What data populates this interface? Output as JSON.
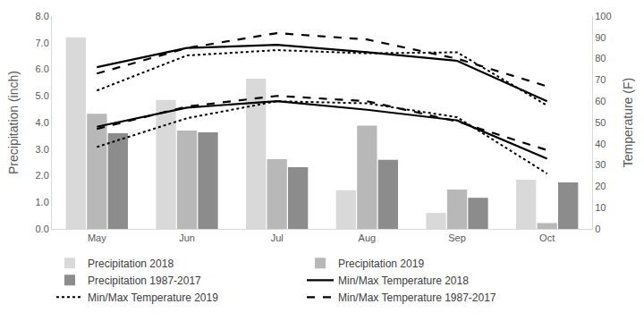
{
  "chart_data": {
    "type": "bar",
    "categories": [
      "May",
      "Jun",
      "Jul",
      "Aug",
      "Sep",
      "Oct"
    ],
    "y_label": "Precipitation (inch)",
    "y2_label": "Temperature (F)",
    "ylim": [
      0,
      8
    ],
    "yticks": [
      {
        "value": 0,
        "label": "0.0"
      },
      {
        "value": 1,
        "label": "1.0"
      },
      {
        "value": 2,
        "label": "2.0"
      },
      {
        "value": 3,
        "label": "3.0"
      },
      {
        "value": 4,
        "label": "4.0"
      },
      {
        "value": 5,
        "label": "5.0"
      },
      {
        "value": 6,
        "label": "6.0"
      },
      {
        "value": 7,
        "label": "7.0"
      },
      {
        "value": 8,
        "label": "8.0"
      }
    ],
    "y2lim": [
      0,
      100
    ],
    "y2ticks": [
      0,
      10,
      20,
      30,
      40,
      50,
      60,
      70,
      80,
      90,
      100
    ],
    "grid": false,
    "legend": "bottom",
    "series": [
      {
        "name": "Precipitation 2018",
        "type": "bar",
        "color": "#d9d9d9",
        "values": [
          7.2,
          4.85,
          5.65,
          1.45,
          0.6,
          1.85
        ]
      },
      {
        "name": "Precipitation 2019",
        "type": "bar",
        "color": "#b8b8b8",
        "values": [
          4.33,
          3.7,
          2.62,
          3.88,
          1.48,
          0.22
        ]
      },
      {
        "name": "Precipitation 1987-2017",
        "type": "bar",
        "color": "#8c8c8c",
        "values": [
          3.6,
          3.63,
          2.32,
          2.6,
          1.17,
          1.75
        ]
      },
      {
        "name": "Min/Max Temperature 2018",
        "type": "line",
        "axis": "y2",
        "color": "#000000",
        "line_style": "solid",
        "max": [
          76,
          85,
          86.5,
          83,
          79,
          60
        ],
        "min": [
          48,
          57,
          60,
          56,
          51,
          33
        ]
      },
      {
        "name": "Min/Max Temperature 2019",
        "type": "line",
        "axis": "y2",
        "color": "#000000",
        "line_style": "dot",
        "max": [
          65,
          81.5,
          84,
          82.5,
          83,
          58
        ],
        "min": [
          38.5,
          52,
          60,
          59,
          52.5,
          26
        ]
      },
      {
        "name": "Min/Max Temperature 1987-2017",
        "type": "line",
        "axis": "y2",
        "color": "#000000",
        "line_style": "dash",
        "max": [
          73,
          85,
          92,
          89,
          80,
          67
        ],
        "min": [
          47,
          57.5,
          62.5,
          60,
          50.5,
          37
        ]
      }
    ]
  }
}
